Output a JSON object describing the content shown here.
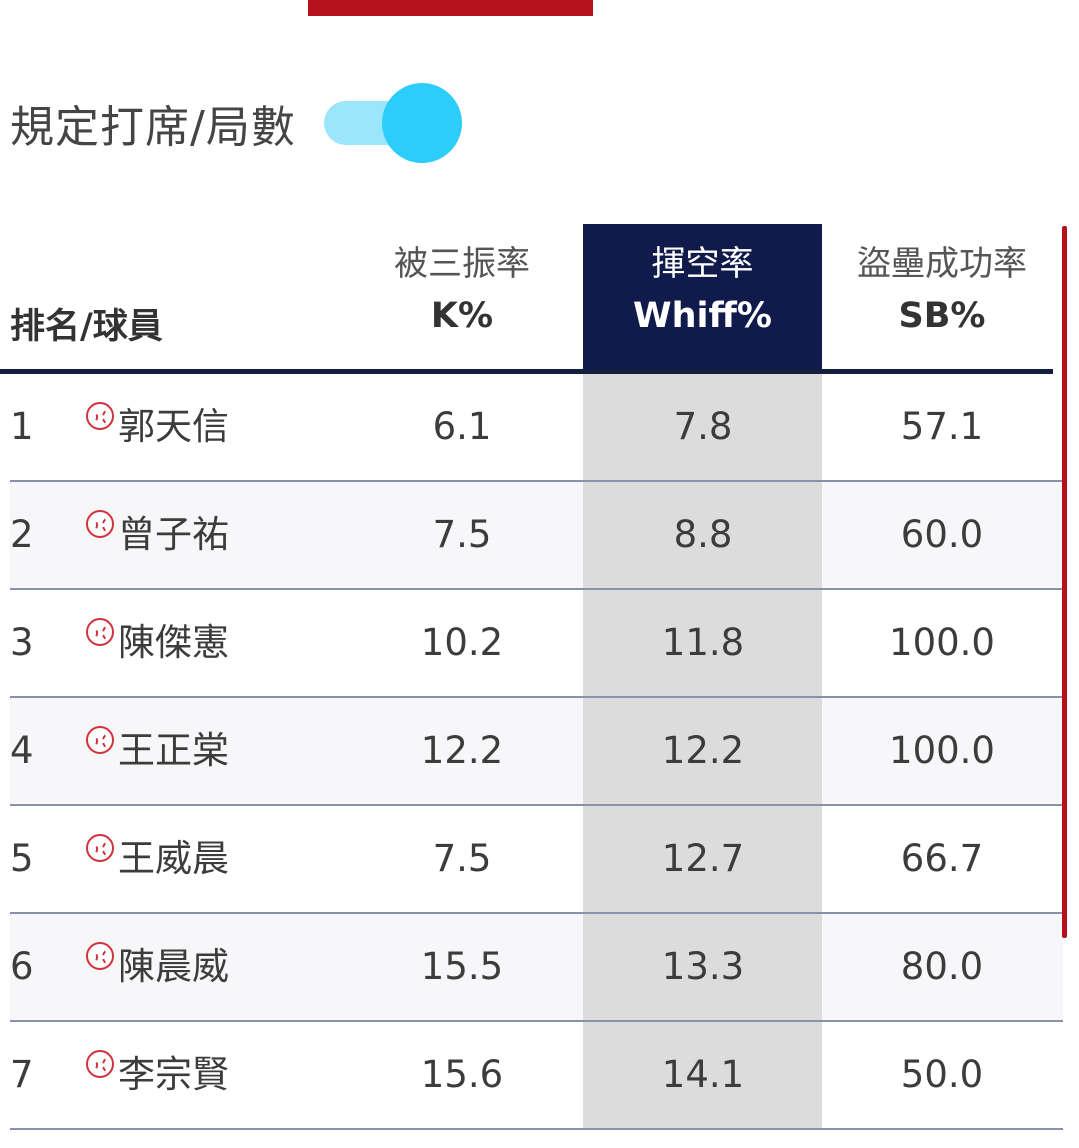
{
  "colors": {
    "accent_red": "#b5121b",
    "header_navy": "#101b4b",
    "toggle_cyan": "#2ccdfb"
  },
  "filter": {
    "label": "規定打席/局數",
    "toggle_on": true
  },
  "table": {
    "columns": {
      "player": "排名/球員",
      "k_zh": "被三振率",
      "k_en": "K%",
      "whiff_zh": "揮空率",
      "whiff_en": "Whiff%",
      "sb_zh": "盜壘成功率",
      "sb_en": "SB%"
    },
    "sorted_column": "Whiff%",
    "rows": [
      {
        "rank": "1",
        "name": "郭天信",
        "k": "6.1",
        "whiff": "7.8",
        "sb": "57.1"
      },
      {
        "rank": "2",
        "name": "曾子祐",
        "k": "7.5",
        "whiff": "8.8",
        "sb": "60.0"
      },
      {
        "rank": "3",
        "name": "陳傑憲",
        "k": "10.2",
        "whiff": "11.8",
        "sb": "100.0"
      },
      {
        "rank": "4",
        "name": "王正棠",
        "k": "12.2",
        "whiff": "12.2",
        "sb": "100.0"
      },
      {
        "rank": "5",
        "name": "王威晨",
        "k": "7.5",
        "whiff": "12.7",
        "sb": "66.7"
      },
      {
        "rank": "6",
        "name": "陳晨威",
        "k": "15.5",
        "whiff": "13.3",
        "sb": "80.0"
      },
      {
        "rank": "7",
        "name": "李宗賢",
        "k": "15.6",
        "whiff": "14.1",
        "sb": "50.0"
      }
    ]
  },
  "icons": {
    "player_icon": "baseball-icon"
  }
}
